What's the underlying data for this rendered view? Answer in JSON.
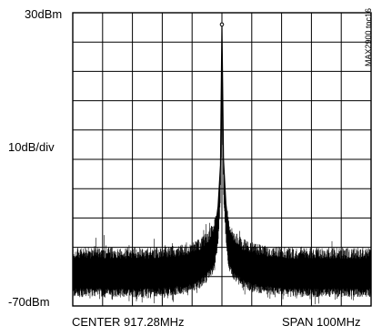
{
  "labels": {
    "ref_level": "30dBm",
    "scale": "10dB/div",
    "bottom_level": "-70dBm",
    "center": "CENTER 917.28MHz",
    "span": "SPAN 100MHz",
    "figure_code": "MAX2900 toc16"
  },
  "chart_data": {
    "type": "line",
    "title": "",
    "xlabel": "",
    "ylabel": "",
    "x_center_mhz": 917.28,
    "x_span_mhz": 100,
    "xlim": [
      867.28,
      967.28
    ],
    "ylim": [
      -70,
      30
    ],
    "y_units": "dBm",
    "y_scale_per_div": 10,
    "grid": true,
    "grid_divisions": {
      "x": 10,
      "y": 10
    },
    "series": [
      {
        "x": [
          867.28,
          880,
          895,
          905,
          910,
          913,
          915,
          916,
          916.8,
          917.28,
          917.8,
          918.6,
          919.5,
          921,
          924,
          930,
          940,
          955,
          967.28
        ],
        "y": [
          -54,
          -54,
          -54,
          -53,
          -51,
          -48,
          -44,
          -36,
          -22,
          26,
          -20,
          -35,
          -44,
          -48,
          -51,
          -53,
          -54,
          -54,
          -54
        ]
      }
    ],
    "noise_floor_dbm": -54,
    "noise_band_dbm": [
      -67,
      -50
    ]
  }
}
